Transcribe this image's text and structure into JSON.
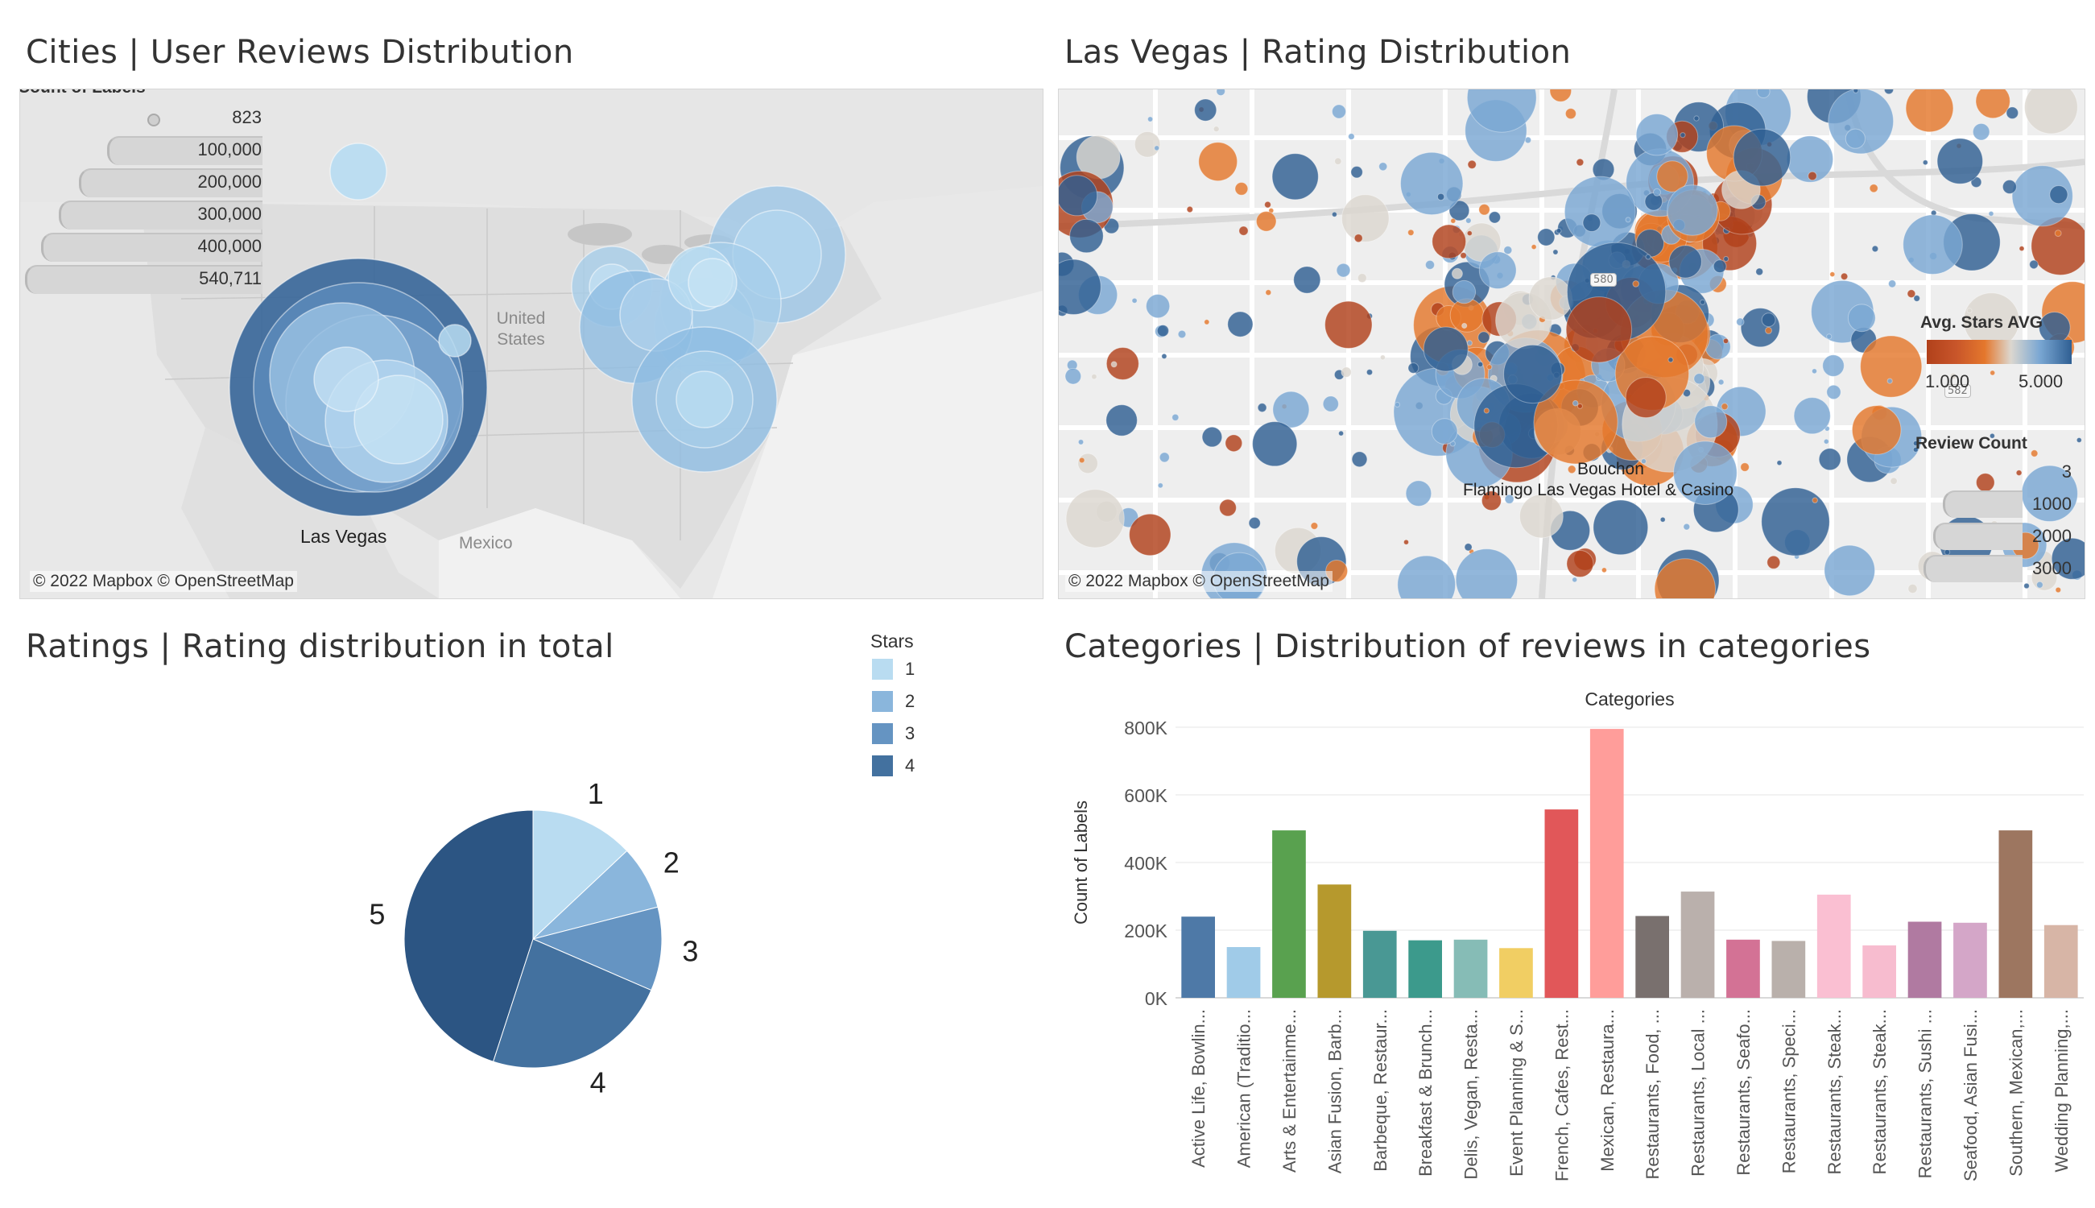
{
  "titles": {
    "cities": "Cities  | User Reviews Distribution",
    "vegas": "Las Vegas | Rating Distribution",
    "ratings": "Ratings | Rating distribution in total",
    "categories": "Categories | Distribution of reviews in categories"
  },
  "cities_map": {
    "legend_title": "Count of Labels",
    "legend_values": [
      "823",
      "100,000",
      "200,000",
      "300,000",
      "400,000",
      "540,711"
    ],
    "labels": {
      "las_vegas": "Las Vegas",
      "united_states": "United States",
      "mexico": "Mexico"
    },
    "attribution": "© 2022 Mapbox © OpenStreetMap",
    "bubble_color": "#5b8fc2"
  },
  "vegas_map": {
    "legend_color_title": "Avg. Stars AVG",
    "legend_color_min": "1.000",
    "legend_color_max": "5.000",
    "legend_size_title": "Review Count",
    "legend_size_values": [
      "3",
      "1000",
      "2000",
      "3000"
    ],
    "point_labels": [
      "Bouchon",
      "Flamingo Las Vegas Hotel & Casino"
    ],
    "badges": [
      "580",
      "582"
    ],
    "attribution": "© 2022 Mapbox © OpenStreetMap",
    "diverging_colors": [
      "#b1411b",
      "#e4772c",
      "#dcd7cf",
      "#7aa7d3",
      "#2f5f93"
    ]
  },
  "stars_legend": {
    "title": "Stars",
    "items": [
      {
        "label": "1",
        "color": "#b9dcf1"
      },
      {
        "label": "2",
        "color": "#8ab6dc"
      },
      {
        "label": "3",
        "color": "#6594c2"
      },
      {
        "label": "4",
        "color": "#43719f"
      }
    ]
  },
  "chart_data": [
    {
      "type": "pie",
      "categories": [
        "1",
        "2",
        "3",
        "4",
        "5"
      ],
      "values": [
        13,
        8,
        10.5,
        23.5,
        45
      ],
      "colors": [
        "#b9dcf1",
        "#8ab6dc",
        "#6594c2",
        "#43719f",
        "#2c5583"
      ]
    },
    {
      "type": "bar",
      "title": "Categories",
      "ylabel": "Count of Labels",
      "ylim": [
        0,
        800000
      ],
      "yticks": [
        0,
        200000,
        400000,
        600000,
        800000
      ],
      "ytick_labels": [
        "0K",
        "200K",
        "400K",
        "600K",
        "800K"
      ],
      "grid": true,
      "categories": [
        "Active Life, Bowlin...",
        "American (Traditio...",
        "Arts & Entertainme...",
        "Asian Fusion, Barb...",
        "Barbeque, Restaur...",
        "Breakfast & Brunch...",
        "Delis, Vegan, Resta...",
        "Event Planning & S...",
        "French, Cafes, Rest...",
        "Mexican, Restaura...",
        "Restaurants, Food, ...",
        "Restaurants, Local ...",
        "Restaurants, Seafo...",
        "Restaurants, Speci...",
        "Restaurants, Steak...",
        "Restaurants, Steak...",
        "Restaurants, Sushi ...",
        "Seafood, Asian Fusi...",
        "Southern, Mexican,...",
        "Wedding Planning,..."
      ],
      "values": [
        240000,
        150000,
        495000,
        335000,
        198000,
        170000,
        172000,
        147000,
        557000,
        795000,
        242000,
        314000,
        172000,
        168000,
        305000,
        155000,
        225000,
        222000,
        495000,
        215000
      ],
      "colors": [
        "#4e79a7",
        "#a0cbe8",
        "#59a14f",
        "#b6992d",
        "#499894",
        "#3c9a8c",
        "#86bcb6",
        "#f1ce63",
        "#e15759",
        "#ff9d9a",
        "#79706e",
        "#bab0ac",
        "#d37295",
        "#b9b0ab",
        "#fabfd2",
        "#f7bccf",
        "#b07aa1",
        "#d4a6c8",
        "#9d7660",
        "#d7b5a6"
      ]
    }
  ]
}
